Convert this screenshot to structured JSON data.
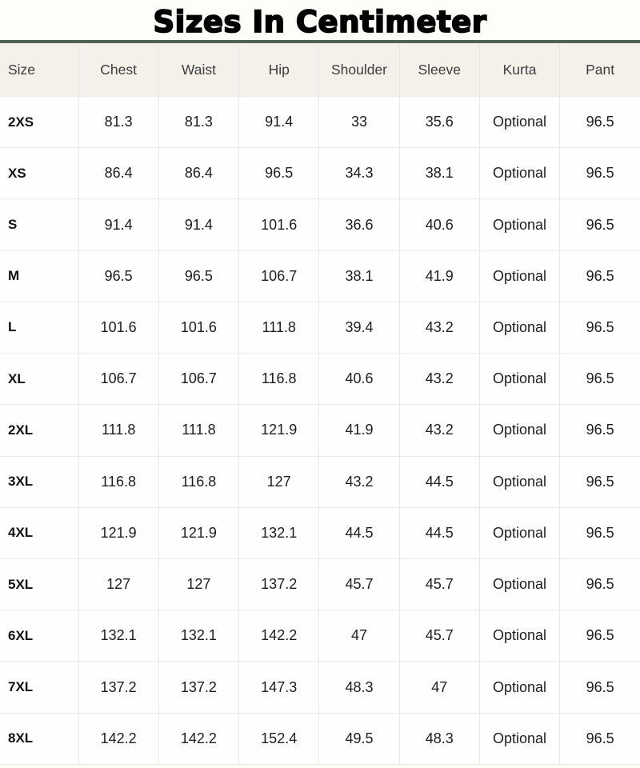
{
  "title": "Sizes In Centimeter",
  "chart_data": {
    "type": "table",
    "title": "Sizes In Centimeter",
    "columns": [
      "Size",
      "Chest",
      "Waist",
      "Hip",
      "Shoulder",
      "Sleeve",
      "Kurta",
      "Pant"
    ],
    "rows": [
      [
        "2XS",
        "81.3",
        "81.3",
        "91.4",
        "33",
        "35.6",
        "Optional",
        "96.5"
      ],
      [
        "XS",
        "86.4",
        "86.4",
        "96.5",
        "34.3",
        "38.1",
        "Optional",
        "96.5"
      ],
      [
        "S",
        "91.4",
        "91.4",
        "101.6",
        "36.6",
        "40.6",
        "Optional",
        "96.5"
      ],
      [
        "M",
        "96.5",
        "96.5",
        "106.7",
        "38.1",
        "41.9",
        "Optional",
        "96.5"
      ],
      [
        "L",
        "101.6",
        "101.6",
        "111.8",
        "39.4",
        "43.2",
        "Optional",
        "96.5"
      ],
      [
        "XL",
        "106.7",
        "106.7",
        "116.8",
        "40.6",
        "43.2",
        "Optional",
        "96.5"
      ],
      [
        "2XL",
        "111.8",
        "111.8",
        "121.9",
        "41.9",
        "43.2",
        "Optional",
        "96.5"
      ],
      [
        "3XL",
        "116.8",
        "116.8",
        "127",
        "43.2",
        "44.5",
        "Optional",
        "96.5"
      ],
      [
        "4XL",
        "121.9",
        "121.9",
        "132.1",
        "44.5",
        "44.5",
        "Optional",
        "96.5"
      ],
      [
        "5XL",
        "127",
        "127",
        "137.2",
        "45.7",
        "45.7",
        "Optional",
        "96.5"
      ],
      [
        "6XL",
        "132.1",
        "132.1",
        "142.2",
        "47",
        "45.7",
        "Optional",
        "96.5"
      ],
      [
        "7XL",
        "137.2",
        "137.2",
        "147.3",
        "48.3",
        "47",
        "Optional",
        "96.5"
      ],
      [
        "8XL",
        "142.2",
        "142.2",
        "152.4",
        "49.5",
        "48.3",
        "Optional",
        "96.5"
      ]
    ]
  },
  "colors": {
    "accent_top_border": "#4e6453",
    "header_bg": "#f3f1ea",
    "grid_border": "#e9e7e1",
    "title_color": "#000000",
    "body_bg": "#fefefe"
  }
}
